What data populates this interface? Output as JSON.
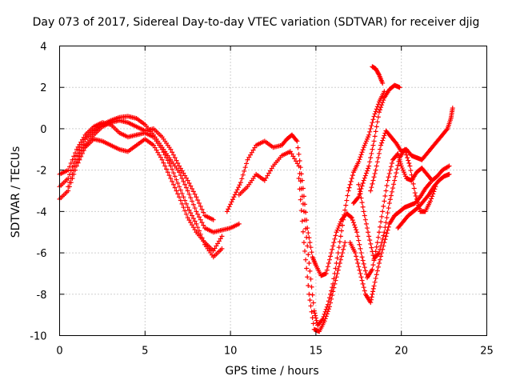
{
  "chart_data": {
    "type": "scatter",
    "title": "Day 073 of 2017, Sidereal Day-to-day VTEC variation (SDTVAR) for receiver djig",
    "xlabel": "GPS time / hours",
    "ylabel": "SDTVAR / TECUs",
    "xlim": [
      0,
      25
    ],
    "ylim": [
      -10,
      4
    ],
    "xticks": [
      "0",
      "5",
      "10",
      "15",
      "20",
      "25"
    ],
    "yticks": [
      "4",
      "2",
      "0",
      "-2",
      "-4",
      "-6",
      "-8",
      "-10"
    ],
    "grid": true,
    "marker": "plus",
    "marker_color": "#ff0000",
    "series": [
      {
        "values": [
          [
            0.0,
            -2.8
          ],
          [
            0.5,
            -2.4
          ],
          [
            1.0,
            -1.3
          ],
          [
            1.5,
            -0.5
          ],
          [
            2.0,
            -0.1
          ],
          [
            2.5,
            0.2
          ],
          [
            3.0,
            0.4
          ],
          [
            3.5,
            0.55
          ],
          [
            4.0,
            0.6
          ],
          [
            4.5,
            0.5
          ],
          [
            5.0,
            0.2
          ],
          [
            5.5,
            -0.3
          ],
          [
            6.0,
            -0.9
          ],
          [
            6.5,
            -1.5
          ],
          [
            7.0,
            -2.1
          ],
          [
            7.5,
            -3.0
          ],
          [
            8.0,
            -4.0
          ],
          [
            8.5,
            -4.8
          ],
          [
            9.0,
            -5.0
          ],
          [
            9.5,
            -4.9
          ],
          [
            10.0,
            -4.8
          ],
          [
            10.5,
            -4.6
          ]
        ]
      },
      {
        "values": [
          [
            0.0,
            -2.2
          ],
          [
            0.5,
            -2.0
          ],
          [
            1.0,
            -1.0
          ],
          [
            1.5,
            -0.3
          ],
          [
            2.0,
            0.1
          ],
          [
            2.5,
            0.3
          ],
          [
            3.0,
            0.2
          ],
          [
            3.5,
            -0.2
          ],
          [
            4.0,
            -0.4
          ],
          [
            4.5,
            -0.3
          ],
          [
            5.0,
            -0.2
          ],
          [
            5.5,
            -0.4
          ],
          [
            6.0,
            -1.0
          ],
          [
            6.5,
            -1.8
          ],
          [
            7.0,
            -2.8
          ],
          [
            7.5,
            -3.8
          ],
          [
            8.0,
            -4.6
          ],
          [
            8.5,
            -5.6
          ],
          [
            9.0,
            -6.2
          ],
          [
            9.5,
            -5.8
          ]
        ]
      },
      {
        "values": [
          [
            0.0,
            -3.4
          ],
          [
            0.5,
            -3.0
          ],
          [
            1.0,
            -1.8
          ],
          [
            1.5,
            -0.9
          ],
          [
            2.0,
            -0.5
          ],
          [
            2.5,
            -0.6
          ],
          [
            3.0,
            -0.8
          ],
          [
            3.5,
            -1.0
          ],
          [
            4.0,
            -1.1
          ],
          [
            4.5,
            -0.8
          ],
          [
            5.0,
            -0.5
          ],
          [
            5.5,
            -0.8
          ],
          [
            6.0,
            -1.5
          ],
          [
            6.5,
            -2.4
          ],
          [
            7.0,
            -3.3
          ],
          [
            7.5,
            -4.3
          ],
          [
            8.0,
            -5.0
          ],
          [
            8.5,
            -5.5
          ],
          [
            9.0,
            -5.9
          ],
          [
            9.5,
            -5.2
          ]
        ]
      },
      {
        "values": [
          [
            0.5,
            -2.8
          ],
          [
            1.0,
            -1.6
          ],
          [
            1.5,
            -0.8
          ],
          [
            2.0,
            -0.3
          ],
          [
            2.5,
            0.1
          ],
          [
            3.0,
            0.3
          ],
          [
            3.5,
            0.4
          ],
          [
            4.0,
            0.3
          ],
          [
            4.5,
            0.1
          ],
          [
            5.0,
            -0.1
          ],
          [
            5.5,
            0.0
          ],
          [
            6.0,
            -0.4
          ],
          [
            6.5,
            -1.0
          ],
          [
            7.0,
            -1.8
          ],
          [
            7.5,
            -2.5
          ],
          [
            8.0,
            -3.3
          ],
          [
            8.5,
            -4.2
          ],
          [
            9.0,
            -4.4
          ]
        ]
      },
      {
        "values": [
          [
            9.8,
            -4.0
          ],
          [
            10.2,
            -3.3
          ],
          [
            10.6,
            -2.6
          ],
          [
            11.0,
            -1.5
          ],
          [
            11.5,
            -0.8
          ],
          [
            12.0,
            -0.6
          ],
          [
            12.5,
            -0.9
          ],
          [
            13.0,
            -0.8
          ],
          [
            13.3,
            -0.5
          ],
          [
            13.6,
            -0.3
          ],
          [
            13.9,
            -0.6
          ],
          [
            14.2,
            -2.5
          ],
          [
            14.5,
            -4.8
          ],
          [
            14.8,
            -6.2
          ],
          [
            15.0,
            -6.6
          ],
          [
            15.3,
            -7.1
          ],
          [
            15.6,
            -7.0
          ],
          [
            15.9,
            -6.0
          ],
          [
            16.2,
            -5.0
          ],
          [
            16.5,
            -4.4
          ],
          [
            16.8,
            -4.1
          ],
          [
            17.1,
            -4.3
          ],
          [
            17.4,
            -5.0
          ],
          [
            17.7,
            -6.2
          ],
          [
            18.0,
            -7.2
          ],
          [
            18.3,
            -6.8
          ],
          [
            18.6,
            -5.5
          ],
          [
            18.9,
            -4.0
          ],
          [
            19.2,
            -2.5
          ],
          [
            19.5,
            -1.5
          ],
          [
            19.8,
            -1.2
          ],
          [
            20.0,
            -1.8
          ],
          [
            20.3,
            -2.4
          ],
          [
            20.6,
            -2.5
          ],
          [
            20.9,
            -2.1
          ],
          [
            21.2,
            -1.9
          ],
          [
            21.5,
            -2.2
          ],
          [
            21.8,
            -2.5
          ],
          [
            22.1,
            -2.3
          ],
          [
            22.4,
            -2.0
          ],
          [
            22.8,
            -1.8
          ]
        ]
      },
      {
        "values": [
          [
            10.5,
            -3.2
          ],
          [
            11.0,
            -2.8
          ],
          [
            11.5,
            -2.2
          ],
          [
            12.0,
            -2.5
          ],
          [
            12.5,
            -1.8
          ],
          [
            13.0,
            -1.3
          ],
          [
            13.5,
            -1.1
          ],
          [
            14.0,
            -1.8
          ],
          [
            14.3,
            -4.0
          ],
          [
            14.6,
            -6.5
          ],
          [
            14.9,
            -8.8
          ],
          [
            15.1,
            -9.5
          ],
          [
            15.4,
            -9.2
          ],
          [
            15.7,
            -8.5
          ],
          [
            16.0,
            -7.5
          ],
          [
            16.3,
            -6.0
          ],
          [
            16.6,
            -4.4
          ],
          [
            16.9,
            -3.0
          ],
          [
            17.2,
            -2.1
          ],
          [
            17.5,
            -1.6
          ],
          [
            17.8,
            -0.9
          ],
          [
            18.1,
            -0.3
          ],
          [
            18.4,
            0.6
          ],
          [
            18.7,
            1.3
          ],
          [
            19.0,
            1.8
          ]
        ]
      },
      {
        "values": [
          [
            14.0,
            -2.4
          ],
          [
            14.3,
            -5.5
          ],
          [
            14.6,
            -8.0
          ],
          [
            14.9,
            -9.7
          ],
          [
            15.2,
            -9.8
          ],
          [
            15.5,
            -9.3
          ],
          [
            15.8,
            -8.6
          ],
          [
            16.1,
            -7.5
          ],
          [
            16.4,
            -6.5
          ],
          [
            16.7,
            -5.5
          ]
        ]
      },
      {
        "values": [
          [
            17.2,
            -3.6
          ],
          [
            17.5,
            -3.3
          ],
          [
            17.8,
            -2.5
          ],
          [
            18.1,
            -1.8
          ],
          [
            18.4,
            -0.6
          ],
          [
            18.7,
            0.8
          ],
          [
            19.0,
            1.5
          ],
          [
            19.3,
            1.9
          ],
          [
            19.6,
            2.1
          ],
          [
            19.9,
            2.0
          ]
        ]
      },
      {
        "values": [
          [
            18.3,
            3.0
          ],
          [
            18.5,
            2.9
          ],
          [
            18.7,
            2.6
          ],
          [
            18.9,
            2.2
          ]
        ]
      },
      {
        "values": [
          [
            17.0,
            -5.5
          ],
          [
            17.3,
            -6.0
          ],
          [
            17.6,
            -7.0
          ],
          [
            17.9,
            -8.0
          ],
          [
            18.2,
            -8.4
          ],
          [
            18.4,
            -7.6
          ],
          [
            18.7,
            -6.5
          ],
          [
            19.0,
            -5.5
          ],
          [
            19.3,
            -4.6
          ],
          [
            19.6,
            -4.2
          ],
          [
            19.9,
            -4.0
          ],
          [
            20.2,
            -3.8
          ],
          [
            20.5,
            -3.7
          ],
          [
            20.8,
            -3.6
          ],
          [
            21.1,
            -3.3
          ],
          [
            21.4,
            -2.9
          ],
          [
            21.7,
            -2.6
          ]
        ]
      },
      {
        "values": [
          [
            17.5,
            -2.7
          ],
          [
            17.8,
            -4.0
          ],
          [
            18.1,
            -5.2
          ],
          [
            18.4,
            -6.3
          ],
          [
            18.7,
            -6.0
          ],
          [
            19.0,
            -5.0
          ],
          [
            19.3,
            -3.6
          ],
          [
            19.6,
            -2.5
          ],
          [
            19.9,
            -1.4
          ],
          [
            20.2,
            -1.0
          ],
          [
            20.5,
            -1.8
          ],
          [
            20.8,
            -3.1
          ],
          [
            21.1,
            -4.0
          ],
          [
            21.4,
            -4.0
          ],
          [
            21.7,
            -3.5
          ],
          [
            22.0,
            -2.8
          ]
        ]
      },
      {
        "values": [
          [
            18.2,
            -3.0
          ],
          [
            18.5,
            -2.0
          ],
          [
            18.8,
            -0.8
          ],
          [
            19.1,
            -0.1
          ],
          [
            19.4,
            -0.4
          ],
          [
            19.7,
            -0.7
          ],
          [
            20.0,
            -1.1
          ],
          [
            20.3,
            -1.0
          ],
          [
            20.6,
            -1.3
          ],
          [
            20.9,
            -1.4
          ],
          [
            21.2,
            -1.5
          ],
          [
            21.5,
            -1.2
          ],
          [
            21.8,
            -0.9
          ],
          [
            22.1,
            -0.6
          ],
          [
            22.4,
            -0.3
          ],
          [
            22.7,
            0.0
          ],
          [
            22.9,
            0.5
          ],
          [
            23.0,
            1.0
          ]
        ]
      },
      {
        "values": [
          [
            19.8,
            -4.8
          ],
          [
            20.1,
            -4.5
          ],
          [
            20.4,
            -4.2
          ],
          [
            20.7,
            -4.0
          ],
          [
            21.0,
            -3.8
          ],
          [
            21.3,
            -3.5
          ],
          [
            21.6,
            -3.2
          ],
          [
            21.9,
            -2.8
          ],
          [
            22.2,
            -2.5
          ],
          [
            22.5,
            -2.3
          ],
          [
            22.8,
            -2.2
          ]
        ]
      }
    ]
  }
}
